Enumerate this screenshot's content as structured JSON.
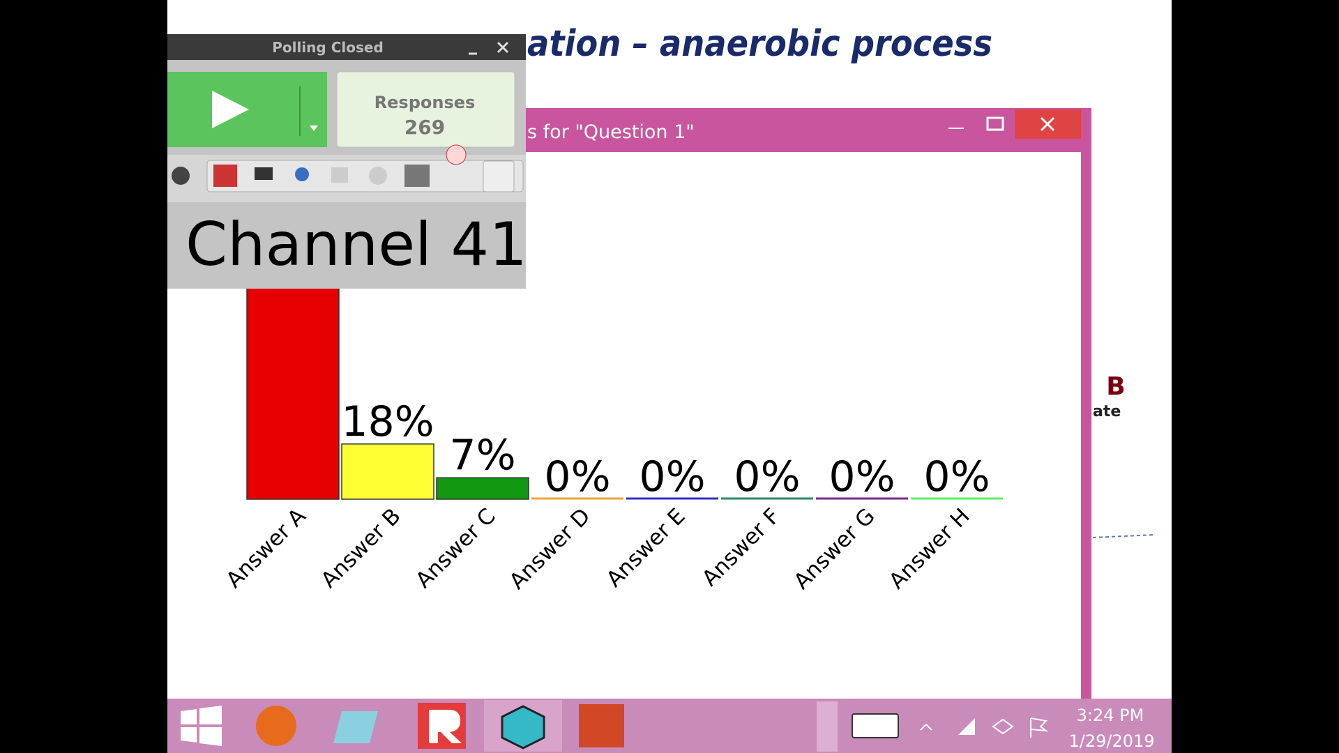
{
  "slide": {
    "title": "ation – anaerobic process",
    "side_letter": "B",
    "side_text": "ate"
  },
  "chart_window": {
    "title": "s for \"Question 1\""
  },
  "polling": {
    "title": "Polling Closed",
    "responses_label": "Responses",
    "responses": 269,
    "channel": "Channel 41"
  },
  "chart_data": {
    "type": "bar",
    "categories": [
      "Answer A",
      "Answer B",
      "Answer C",
      "Answer D",
      "Answer E",
      "Answer F",
      "Answer G",
      "Answer H"
    ],
    "values": [
      75,
      18,
      7,
      0,
      0,
      0,
      0,
      0
    ],
    "value_labels": [
      null,
      "18%",
      "7%",
      "0%",
      "0%",
      "0%",
      "0%",
      "0%"
    ],
    "colors": [
      "#e60000",
      "#ffff33",
      "#119911",
      "#e8a33c",
      "#3030c0",
      "#2a8a6a",
      "#7a2a8a",
      "#5ef05e"
    ]
  },
  "taskbar": {
    "time": "3:24 PM",
    "date": "1/29/2019"
  }
}
